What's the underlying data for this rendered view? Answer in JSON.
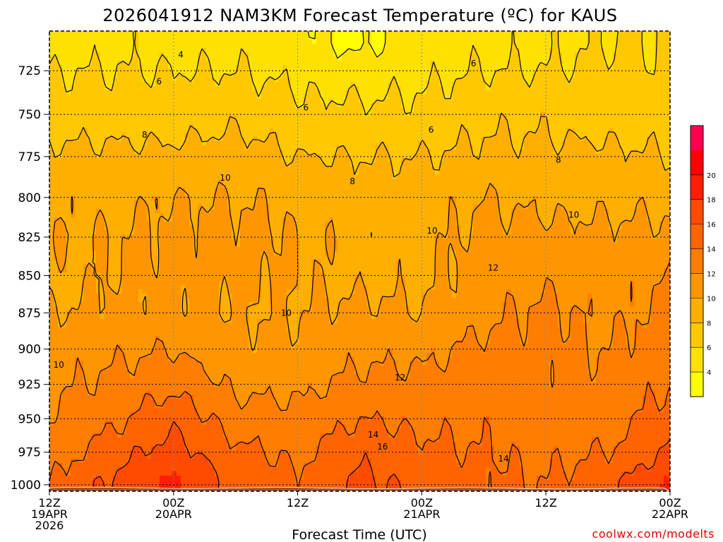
{
  "title": "2026041912 NAM3KM Forecast Temperature (ºC) for KAUS",
  "credit": "coolwx.com/modelts",
  "chart_data": {
    "type": "heatmap",
    "title": "2026041912 NAM3KM Forecast Temperature (ºC) for KAUS",
    "xlabel": "Forecast Time (UTC)",
    "ylabel": "",
    "y_scale": "pressure (log)",
    "ylim": [
      1005,
      703
    ],
    "xlim_hours": [
      0,
      60
    ],
    "yticks": [
      "725",
      "750",
      "775",
      "800",
      "825",
      "850",
      "875",
      "900",
      "925",
      "950",
      "975",
      "1000"
    ],
    "ytick_values": [
      725,
      750,
      775,
      800,
      825,
      850,
      875,
      900,
      925,
      950,
      975,
      1000
    ],
    "xticks": [
      {
        "hour": 0,
        "lines": [
          "12Z",
          "19APR",
          "2026"
        ]
      },
      {
        "hour": 12,
        "lines": [
          "00Z",
          "20APR"
        ]
      },
      {
        "hour": 24,
        "lines": [
          "12Z"
        ]
      },
      {
        "hour": 36,
        "lines": [
          "00Z",
          "21APR"
        ]
      },
      {
        "hour": 48,
        "lines": [
          "12Z"
        ]
      },
      {
        "hour": 60,
        "lines": [
          "00Z",
          "22APR"
        ]
      }
    ],
    "colorbar": {
      "levels": [
        2,
        4,
        6,
        8,
        10,
        12,
        14,
        16,
        18,
        20,
        22
      ],
      "labels": [
        "4",
        "6",
        "8",
        "10",
        "12",
        "14",
        "16",
        "18",
        "20"
      ],
      "colors": [
        "#ffff00",
        "#ffe100",
        "#ffc800",
        "#ffaf00",
        "#ff9600",
        "#ff7d00",
        "#ff6400",
        "#ff4b00",
        "#ff1e00",
        "#ff0000",
        "#ff0050"
      ]
    },
    "x_hours": [
      0,
      6,
      12,
      18,
      24,
      30,
      36,
      42,
      48,
      54,
      60
    ],
    "profile_pressures": [
      710,
      725,
      750,
      775,
      800,
      825,
      850,
      875,
      900,
      925,
      950,
      975,
      1000
    ],
    "temperature_profiles": [
      [
        5,
        6,
        7,
        8.5,
        9.5,
        10,
        9.5,
        10,
        11,
        11.5,
        12,
        13,
        14
      ],
      [
        5.5,
        6,
        7,
        8.5,
        9.5,
        10,
        10,
        10.5,
        11.5,
        12.5,
        13.5,
        15,
        16.5
      ],
      [
        5.5,
        6,
        7,
        8.5,
        10,
        10.5,
        10.5,
        10.5,
        12,
        13.5,
        15.5,
        17,
        18.5
      ],
      [
        5.5,
        6,
        7.5,
        9,
        10,
        10.5,
        10.5,
        10,
        10.5,
        11.5,
        13,
        14.5,
        15.5
      ],
      [
        4.5,
        5.5,
        6.5,
        8,
        9.5,
        10,
        10,
        10,
        10.5,
        11.5,
        12.5,
        13.5,
        14.5
      ],
      [
        3.5,
        5,
        6.5,
        8,
        9,
        9.5,
        9.5,
        10.5,
        11.5,
        12.5,
        14,
        15.5,
        16.5
      ],
      [
        5,
        5.5,
        6.5,
        8,
        9,
        9.5,
        9.5,
        10,
        11.5,
        12.5,
        13.5,
        14.5,
        15.5
      ],
      [
        5.5,
        6,
        7.5,
        8.5,
        10,
        10.5,
        11,
        11.5,
        12.5,
        13,
        13.5,
        14,
        14.5
      ],
      [
        5.5,
        6,
        7.5,
        8.5,
        9.5,
        10.5,
        11.5,
        12.5,
        12.5,
        12.5,
        13,
        13.5,
        14
      ],
      [
        6,
        6.5,
        7,
        8.5,
        9.5,
        10.5,
        11,
        11.5,
        12,
        12.5,
        13,
        14,
        15.5
      ],
      [
        6,
        6,
        7,
        8,
        9.5,
        10.5,
        12,
        12.5,
        13,
        14,
        15,
        16.5,
        18
      ]
    ],
    "contour_levels": [
      "4",
      "6",
      "8",
      "10",
      "12",
      "14",
      "16"
    ],
    "contour_labels": [
      {
        "text": "4",
        "hour": 12.7,
        "p": 716
      },
      {
        "text": "6",
        "hour": 10.6,
        "p": 731
      },
      {
        "text": "6",
        "hour": 24.8,
        "p": 746
      },
      {
        "text": "6",
        "hour": 36.9,
        "p": 759
      },
      {
        "text": "6",
        "hour": 41,
        "p": 721
      },
      {
        "text": "8",
        "hour": 9.2,
        "p": 762
      },
      {
        "text": "8",
        "hour": 29.3,
        "p": 790
      },
      {
        "text": "8",
        "hour": 49.2,
        "p": 777
      },
      {
        "text": "10",
        "hour": 17,
        "p": 788
      },
      {
        "text": "10",
        "hour": 37,
        "p": 821
      },
      {
        "text": "10",
        "hour": 50.7,
        "p": 811
      },
      {
        "text": "10",
        "hour": 22.9,
        "p": 875
      },
      {
        "text": "10",
        "hour": 0.9,
        "p": 911
      },
      {
        "text": "12",
        "hour": 42.9,
        "p": 845
      },
      {
        "text": "12",
        "hour": 33.9,
        "p": 920
      },
      {
        "text": "14",
        "hour": 31.3,
        "p": 962
      },
      {
        "text": "14",
        "hour": 43.9,
        "p": 980
      },
      {
        "text": "16",
        "hour": 32.2,
        "p": 971
      }
    ],
    "terrain": "surface near 1002 hPa"
  }
}
